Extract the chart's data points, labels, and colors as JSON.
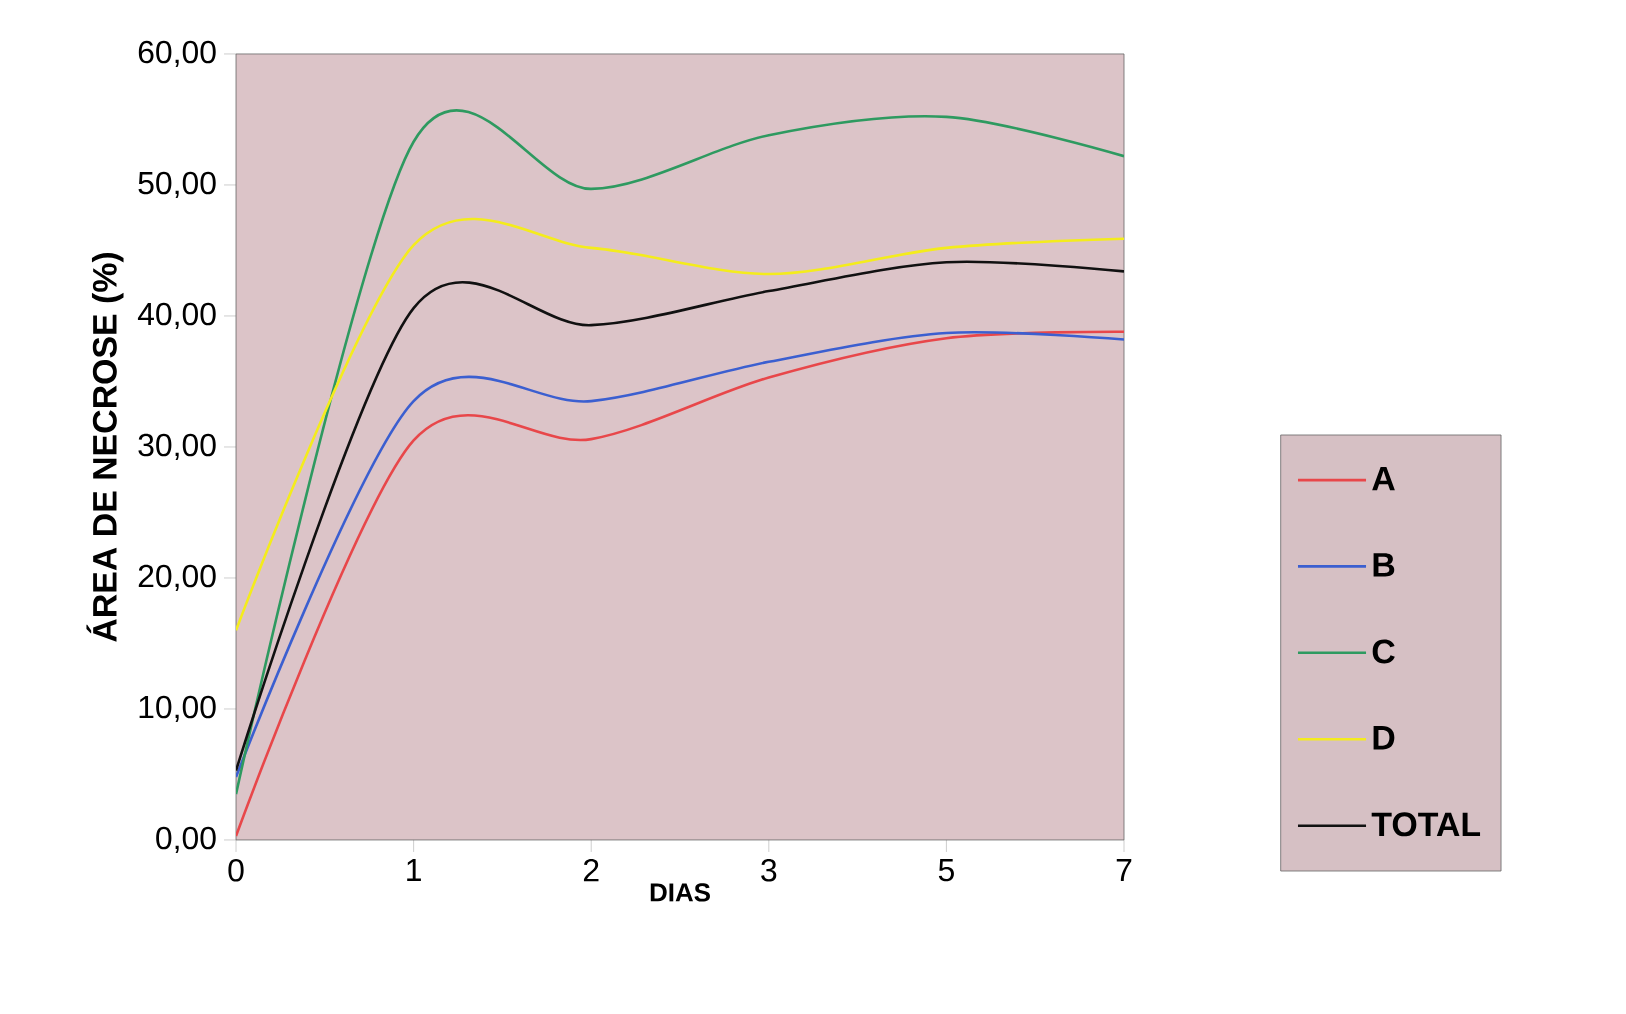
{
  "chart_data": {
    "type": "line",
    "xlabel": "DIAS",
    "ylabel": "ÁREA DE NECROSE (%)",
    "categories": [
      "0",
      "1",
      "2",
      "3",
      "5",
      "7"
    ],
    "series": [
      {
        "name": "A",
        "color": "#e8474a",
        "values": [
          0.3,
          30.5,
          30.6,
          35.3,
          38.3,
          38.8
        ]
      },
      {
        "name": "B",
        "color": "#3b5fd0",
        "values": [
          4.8,
          33.5,
          33.5,
          36.5,
          38.7,
          38.2
        ]
      },
      {
        "name": "C",
        "color": "#2e9a60",
        "values": [
          3.5,
          53.3,
          49.7,
          53.8,
          55.2,
          52.2
        ]
      },
      {
        "name": "D",
        "color": "#f4ec1c",
        "values": [
          16.0,
          45.4,
          45.2,
          43.2,
          45.2,
          45.9
        ]
      },
      {
        "name": "TOTAL",
        "color": "#111111",
        "values": [
          5.3,
          40.6,
          39.3,
          41.9,
          44.1,
          43.4
        ]
      }
    ],
    "ylim": [
      0,
      60
    ],
    "yticks": [
      {
        "value": 0,
        "label": "0,00"
      },
      {
        "value": 10,
        "label": "10,00"
      },
      {
        "value": 20,
        "label": "20,00"
      },
      {
        "value": 30,
        "label": "30,00"
      },
      {
        "value": 40,
        "label": "40,00"
      },
      {
        "value": 50,
        "label": "50,00"
      },
      {
        "value": 60,
        "label": "60,00"
      }
    ],
    "grid": false,
    "legend": "right",
    "marker": "none",
    "line_style": "solid"
  }
}
